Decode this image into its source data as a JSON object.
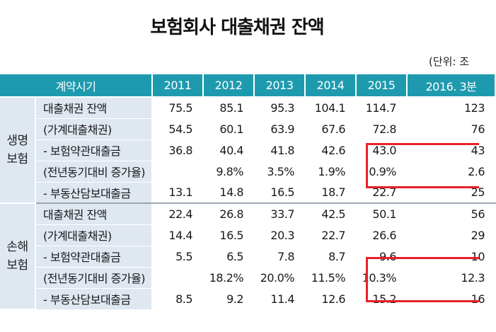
{
  "title": "보험회사 대출채권 잔액",
  "unit": "(단위: 조",
  "header": [
    "계약시기",
    "2011",
    "2012",
    "2013",
    "2014",
    "2015",
    "2016. 3분"
  ],
  "groups": [
    {
      "name": "생명 보험",
      "rows": [
        {
          "label": "대출채권 잔액",
          "values": [
            "75.5",
            "85.1",
            "95.3",
            "104.1",
            "114.7",
            "123"
          ]
        },
        {
          "label": "(가계대출채권)",
          "values": [
            "54.5",
            "60.1",
            "63.9",
            "67.6",
            "72.8",
            "76"
          ]
        },
        {
          "label": "- 보험약관대출금",
          "values": [
            "36.8",
            "40.4",
            "41.8",
            "42.6",
            "43.0",
            "43"
          ]
        },
        {
          "label": "(전년동기대비 증가율)",
          "values": [
            "",
            "9.8%",
            "3.5%",
            "1.9%",
            "0.9%",
            "2.6"
          ]
        },
        {
          "label": "- 부동산담보대출금",
          "values": [
            "13.1",
            "14.8",
            "16.5",
            "18.7",
            "22.7",
            "25"
          ]
        }
      ]
    },
    {
      "name": "손해 보험",
      "rows": [
        {
          "label": "대출채권 잔액",
          "values": [
            "22.4",
            "26.8",
            "33.7",
            "42.5",
            "50.1",
            "56"
          ]
        },
        {
          "label": "(가계대출채권)",
          "values": [
            "14.4",
            "16.5",
            "20.3",
            "22.7",
            "26.6",
            "29"
          ]
        },
        {
          "label": "- 보험약관대출금",
          "values": [
            "5.5",
            "6.5",
            "7.8",
            "8.7",
            "9.6",
            "10"
          ]
        },
        {
          "label": "(전년동기대비 증가율)",
          "values": [
            "",
            "18.2%",
            "20.0%",
            "11.5%",
            "10.3%",
            "12.3"
          ]
        },
        {
          "label": "- 부동산담보대출금",
          "values": [
            "8.5",
            "9.2",
            "11.4",
            "12.6",
            "15.2",
            "16"
          ]
        }
      ]
    }
  ]
}
